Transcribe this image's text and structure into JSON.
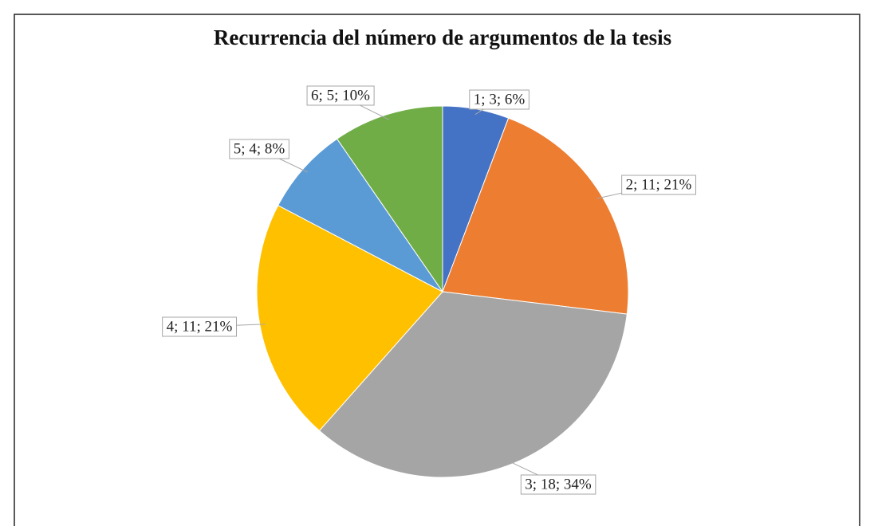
{
  "chart_data": {
    "type": "pie",
    "title": "Recurrencia del número de argumentos de la tesis",
    "categories": [
      "1",
      "2",
      "3",
      "4",
      "5",
      "6"
    ],
    "values": [
      3,
      11,
      18,
      11,
      4,
      5
    ],
    "value_labels": [
      "1; 3; 6%",
      "2; 11; 21%",
      "3; 18; 34%",
      "4; 11; 21%",
      "5; 4; 8%",
      "6; 5; 10%"
    ],
    "colors": [
      "#4472c4",
      "#ed7d31",
      "#a5a5a5",
      "#ffc000",
      "#5b9bd5",
      "#70ad47"
    ]
  }
}
